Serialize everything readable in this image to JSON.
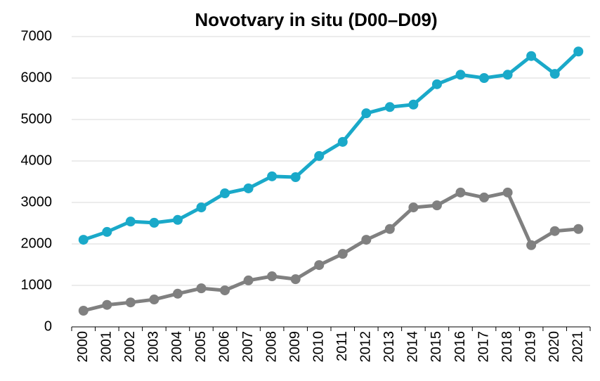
{
  "chart_data": {
    "type": "line",
    "title": "Novotvary in situ (D00–D09)",
    "categories": [
      "2000",
      "2001",
      "2002",
      "2003",
      "2004",
      "2005",
      "2006",
      "2007",
      "2008",
      "2009",
      "2010",
      "2011",
      "2012",
      "2013",
      "2014",
      "2015",
      "2016",
      "2017",
      "2018",
      "2019",
      "2020",
      "2021"
    ],
    "series": [
      {
        "color": "#1aa9c9",
        "values": [
          2100,
          2290,
          2540,
          2510,
          2580,
          2880,
          3220,
          3340,
          3630,
          3610,
          4120,
          4460,
          5150,
          5300,
          5360,
          5850,
          6080,
          6000,
          6080,
          6530,
          6100,
          6640
        ]
      },
      {
        "color": "#808080",
        "values": [
          390,
          530,
          590,
          660,
          800,
          930,
          880,
          1120,
          1220,
          1150,
          1490,
          1760,
          2100,
          2360,
          2880,
          2930,
          3240,
          3120,
          3240,
          1970,
          2310,
          2360
        ]
      }
    ],
    "ylim": [
      0,
      7000
    ],
    "yticks": [
      0,
      1000,
      2000,
      3000,
      4000,
      5000,
      6000,
      7000
    ],
    "grid": true
  }
}
